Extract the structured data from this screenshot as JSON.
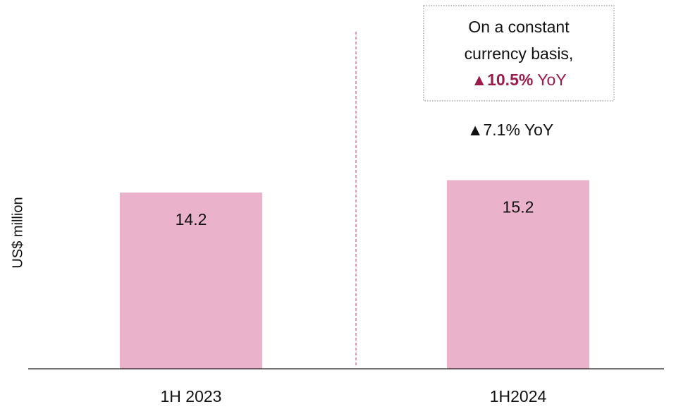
{
  "chart_data": {
    "type": "bar",
    "y_label": "US$ million",
    "categories": [
      "1H 2023",
      "1H2024"
    ],
    "values": [
      14.2,
      15.2
    ],
    "color": "#ebb3cb",
    "ylim": [
      0,
      28
    ],
    "annotations": {
      "yoy": "▲7.1% YoY",
      "constant_currency": {
        "lines": [
          "On a constant",
          "currency basis,"
        ],
        "growth": "▲10.5%",
        "suffix": "YoY",
        "color": "#9b1b4a"
      }
    }
  }
}
